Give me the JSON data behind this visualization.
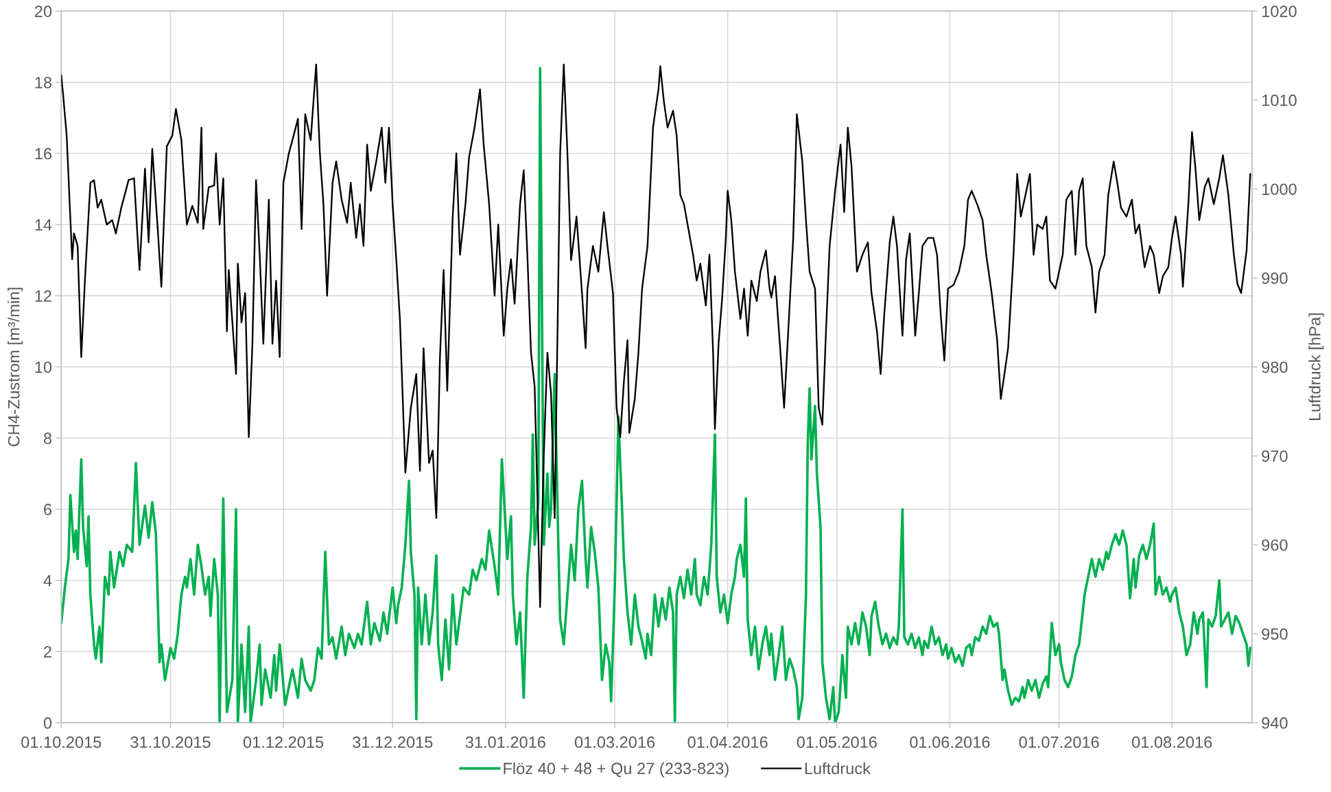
{
  "chart_data": {
    "type": "line",
    "ylabel": "CH4-Zustrom [m³/min]",
    "y2label": "Luftdruck [hPa]",
    "xlim": [
      "2015-10-01",
      "2016-08-23"
    ],
    "xticks": [
      {
        "value": "2015-10-01",
        "label": "01.10.2015"
      },
      {
        "value": "2015-10-31",
        "label": "31.10.2015"
      },
      {
        "value": "2015-12-01",
        "label": "01.12.2015"
      },
      {
        "value": "2015-12-31",
        "label": "31.12.2015"
      },
      {
        "value": "2016-01-31",
        "label": "31.01.2016"
      },
      {
        "value": "2016-03-01",
        "label": "01.03.2016"
      },
      {
        "value": "2016-04-01",
        "label": "01.04.2016"
      },
      {
        "value": "2016-05-01",
        "label": "01.05.2016"
      },
      {
        "value": "2016-06-01",
        "label": "01.06.2016"
      },
      {
        "value": "2016-07-01",
        "label": "01.07.2016"
      },
      {
        "value": "2016-08-01",
        "label": "01.08.2016"
      }
    ],
    "ylim": [
      0,
      20
    ],
    "yticks": [
      0,
      2,
      4,
      6,
      8,
      10,
      12,
      14,
      16,
      18,
      20
    ],
    "y2lim": [
      940,
      1020
    ],
    "y2ticks": [
      940,
      950,
      960,
      970,
      980,
      990,
      1000,
      1010,
      1020
    ],
    "grid": true,
    "legend": "bottom",
    "line_style": "solid",
    "series": [
      {
        "name": "Flöz 40 + 48 + Qu 27 (233-823)",
        "color": "#00b050",
        "axis": "y",
        "x": [
          "2015-10-01",
          "2015-10-02",
          "2015-10-03",
          "2015-10-03T12:00",
          "2015-10-04T12:00",
          "2015-10-05",
          "2015-10-05T12:00",
          "2015-10-06T12:00",
          "2015-10-07",
          "2015-10-08",
          "2015-10-08T12:00",
          "2015-10-09",
          "2015-10-10",
          "2015-10-10T12:00",
          "2015-10-11T12:00",
          "2015-10-12",
          "2015-10-13",
          "2015-10-14",
          "2015-10-14T12:00",
          "2015-10-15T12:00",
          "2015-10-17",
          "2015-10-18",
          "2015-10-19",
          "2015-10-20T12:00",
          "2015-10-21T12:00",
          "2015-10-22T12:00",
          "2015-10-24",
          "2015-10-25",
          "2015-10-26",
          "2015-10-27",
          "2015-10-28",
          "2015-10-28T12:00",
          "2015-10-29T12:00",
          "2015-10-31",
          "2015-11-01",
          "2015-11-02",
          "2015-11-03",
          "2015-11-04",
          "2015-11-04T12:00",
          "2015-11-05T12:00",
          "2015-11-06T12:00",
          "2015-11-07T12:00",
          "2015-11-08T12:00",
          "2015-11-09T12:00",
          "2015-11-10T12:00",
          "2015-11-11",
          "2015-11-12",
          "2015-11-13",
          "2015-11-13T12:00",
          "2015-11-14T12:00",
          "2015-11-15T12:00",
          "2015-11-17",
          "2015-11-18",
          "2015-11-18T12:00",
          "2015-11-19T12:00",
          "2015-11-20T12:00",
          "2015-11-21T12:00",
          "2015-11-22",
          "2015-11-23T12:00",
          "2015-11-24T12:00",
          "2015-11-25",
          "2015-11-26",
          "2015-11-27T12:00",
          "2015-11-28T12:00",
          "2015-11-29",
          "2015-11-30",
          "2015-12-01T12:00",
          "2015-12-02T12:00",
          "2015-12-03T12:00",
          "2015-12-05",
          "2015-12-06",
          "2015-12-07",
          "2015-12-08T12:00",
          "2015-12-09T12:00",
          "2015-12-10T12:00",
          "2015-12-11T12:00",
          "2015-12-12T12:00",
          "2015-12-13T12:00",
          "2015-12-14T12:00",
          "2015-12-15T12:00",
          "2015-12-17",
          "2015-12-18",
          "2015-12-19",
          "2015-12-20T12:00",
          "2015-12-21T12:00",
          "2015-12-22T12:00",
          "2015-12-24",
          "2015-12-25",
          "2015-12-26",
          "2015-12-27T12:00",
          "2015-12-28T12:00",
          "2015-12-29T12:00",
          "2015-12-31",
          "2016-01-01",
          "2016-01-01T12:00",
          "2016-01-02T12:00",
          "2016-01-03T12:00",
          "2016-01-04T12:00",
          "2016-01-05",
          "2016-01-06",
          "2016-01-06T12:00",
          "2016-01-07",
          "2016-01-08",
          "2016-01-09",
          "2016-01-10",
          "2016-01-11",
          "2016-01-12",
          "2016-01-12T12:00",
          "2016-01-13T12:00",
          "2016-01-14T12:00",
          "2016-01-15T12:00",
          "2016-01-16T12:00",
          "2016-01-17T12:00",
          "2016-01-18T12:00",
          "2016-01-19T12:00",
          "2016-01-21",
          "2016-01-22",
          "2016-01-23",
          "2016-01-24T12:00",
          "2016-01-25T12:00",
          "2016-01-26T12:00",
          "2016-01-28",
          "2016-01-29",
          "2016-01-30",
          "2016-01-31T12:00",
          "2016-02-01T12:00",
          "2016-02-02",
          "2016-02-03",
          "2016-02-04",
          "2016-02-05",
          "2016-02-06",
          "2016-02-07",
          "2016-02-07T12:00",
          "2016-02-08",
          "2016-02-09",
          "2016-02-09T12:00",
          "2016-02-10T12:00",
          "2016-02-11T12:00",
          "2016-02-12",
          "2016-02-12T12:00",
          "2016-02-13T12:00",
          "2016-02-14T12:00",
          "2016-02-15",
          "2016-02-16",
          "2016-02-17",
          "2016-02-18",
          "2016-02-19",
          "2016-02-20",
          "2016-02-21",
          "2016-02-22",
          "2016-02-22T12:00",
          "2016-02-23T12:00",
          "2016-02-24T12:00",
          "2016-02-25T12:00",
          "2016-02-26T12:00",
          "2016-02-27T12:00",
          "2016-02-28T12:00",
          "2016-02-29",
          "2016-03-01",
          "2016-03-02",
          "2016-03-03",
          "2016-03-03T12:00",
          "2016-03-04T12:00",
          "2016-03-05T12:00",
          "2016-03-06T12:00",
          "2016-03-07T12:00",
          "2016-03-08T12:00",
          "2016-03-09T12:00",
          "2016-03-10",
          "2016-03-11",
          "2016-03-12",
          "2016-03-13",
          "2016-03-14",
          "2016-03-15",
          "2016-03-16",
          "2016-03-17",
          "2016-03-17T12:00",
          "2016-03-18",
          "2016-03-19",
          "2016-03-20",
          "2016-03-21",
          "2016-03-22",
          "2016-03-23",
          "2016-03-23T12:00",
          "2016-03-24T12:00",
          "2016-03-25T12:00",
          "2016-03-26T12:00",
          "2016-03-27T12:00",
          "2016-03-28T12:00",
          "2016-03-29",
          "2016-03-30",
          "2016-03-31",
          "2016-04-01",
          "2016-04-02",
          "2016-04-03",
          "2016-04-03T12:00",
          "2016-04-04T12:00",
          "2016-04-05T12:00",
          "2016-04-06",
          "2016-04-06T12:00",
          "2016-04-07T12:00",
          "2016-04-08T12:00",
          "2016-04-09T12:00",
          "2016-04-10T12:00",
          "2016-04-11T12:00",
          "2016-04-12T12:00",
          "2016-04-13",
          "2016-04-14",
          "2016-04-15",
          "2016-04-16",
          "2016-04-17",
          "2016-04-18",
          "2016-04-19",
          "2016-04-20",
          "2016-04-20T12:00",
          "2016-04-21T12:00",
          "2016-04-22T12:00",
          "2016-04-23",
          "2016-04-23T12:00",
          "2016-04-24",
          "2016-04-25",
          "2016-04-25T12:00",
          "2016-04-26T12:00",
          "2016-04-27",
          "2016-04-28",
          "2016-04-29",
          "2016-04-30",
          "2016-04-30T12:00",
          "2016-05-01T12:00",
          "2016-05-02T12:00",
          "2016-05-03T12:00",
          "2016-05-04",
          "2016-05-05",
          "2016-05-06",
          "2016-05-07",
          "2016-05-08",
          "2016-05-09",
          "2016-05-10",
          "2016-05-10T12:00",
          "2016-05-11T12:00",
          "2016-05-12T12:00",
          "2016-05-13T12:00",
          "2016-05-14T12:00",
          "2016-05-15T12:00",
          "2016-05-16T12:00",
          "2016-05-17T12:00",
          "2016-05-18",
          "2016-05-19",
          "2016-05-19T12:00",
          "2016-05-20T12:00",
          "2016-05-21T12:00",
          "2016-05-22T12:00",
          "2016-05-23T12:00",
          "2016-05-24T12:00",
          "2016-05-25",
          "2016-05-26",
          "2016-05-27",
          "2016-05-28",
          "2016-05-29",
          "2016-05-30",
          "2016-05-31",
          "2016-05-31T12:00",
          "2016-06-01T12:00",
          "2016-06-02T12:00",
          "2016-06-03T12:00",
          "2016-06-04T12:00",
          "2016-06-05T12:00",
          "2016-06-06T12:00",
          "2016-06-07",
          "2016-06-08",
          "2016-06-09",
          "2016-06-10",
          "2016-06-11",
          "2016-06-12",
          "2016-06-13",
          "2016-06-14",
          "2016-06-14T12:00",
          "2016-06-15T12:00",
          "2016-06-16",
          "2016-06-17",
          "2016-06-18",
          "2016-06-19",
          "2016-06-20",
          "2016-06-21",
          "2016-06-21T12:00",
          "2016-06-22T12:00",
          "2016-06-23T12:00",
          "2016-06-24T12:00",
          "2016-06-25T12:00",
          "2016-06-26T12:00",
          "2016-06-27T12:00",
          "2016-06-28",
          "2016-06-29",
          "2016-06-30",
          "2016-07-01",
          "2016-07-01T12:00",
          "2016-07-02T12:00",
          "2016-07-03T12:00",
          "2016-07-04T12:00",
          "2016-07-05T12:00",
          "2016-07-06T12:00",
          "2016-07-07T12:00",
          "2016-07-08",
          "2016-07-09",
          "2016-07-10",
          "2016-07-11",
          "2016-07-12",
          "2016-07-13",
          "2016-07-14",
          "2016-07-14T12:00",
          "2016-07-15T12:00",
          "2016-07-16T12:00",
          "2016-07-17T12:00",
          "2016-07-18T12:00",
          "2016-07-19T12:00",
          "2016-07-20T12:00",
          "2016-07-21T12:00",
          "2016-07-22",
          "2016-07-23",
          "2016-07-24",
          "2016-07-25",
          "2016-07-26",
          "2016-07-27",
          "2016-07-27T12:00",
          "2016-07-28T12:00",
          "2016-07-29T12:00",
          "2016-07-30T12:00",
          "2016-07-31T12:00",
          "2016-08-01",
          "2016-08-02",
          "2016-08-03",
          "2016-08-04",
          "2016-08-05",
          "2016-08-06",
          "2016-08-07",
          "2016-08-08",
          "2016-08-08T12:00",
          "2016-08-09T12:00",
          "2016-08-10T12:00",
          "2016-08-11",
          "2016-08-12",
          "2016-08-13",
          "2016-08-14",
          "2016-08-14T12:00",
          "2016-08-15T12:00",
          "2016-08-16T12:00",
          "2016-08-17T12:00",
          "2016-08-18T12:00",
          "2016-08-19T12:00",
          "2016-08-20T12:00",
          "2016-08-21T12:00",
          "2016-08-22",
          "2016-08-22T12:00"
        ],
        "values": [
          2.8,
          3.8,
          4.6,
          6.4,
          4.8,
          5.4,
          4.6,
          7.4,
          5.5,
          4.4,
          5.8,
          3.6,
          2.2,
          1.8,
          2.7,
          1.7,
          4.1,
          3.6,
          4.8,
          3.8,
          4.8,
          4.4,
          5.0,
          4.8,
          7.3,
          5.0,
          6.1,
          5.2,
          6.2,
          5.3,
          1.7,
          2.2,
          1.2,
          2.1,
          1.8,
          2.5,
          3.6,
          4.1,
          3.8,
          4.6,
          3.6,
          5.0,
          4.4,
          3.6,
          4.1,
          3.0,
          4.6,
          3.6,
          0.0,
          6.3,
          0.3,
          1.2,
          6.0,
          0.0,
          2.2,
          0.3,
          2.7,
          0.0,
          1.2,
          2.2,
          0.5,
          1.5,
          0.7,
          1.9,
          0.9,
          2.2,
          0.5,
          1.0,
          1.5,
          0.7,
          1.8,
          1.2,
          0.9,
          1.2,
          2.1,
          1.8,
          4.8,
          2.2,
          2.4,
          1.8,
          2.7,
          1.9,
          2.5,
          2.1,
          2.5,
          2.2,
          3.4,
          2.2,
          2.8,
          2.3,
          3.1,
          2.5,
          3.8,
          2.8,
          3.3,
          3.8,
          5.0,
          6.8,
          4.8,
          3.6,
          0.1,
          3.8,
          2.2,
          3.6,
          2.2,
          3.1,
          4.7,
          2.2,
          1.2,
          2.9,
          1.5,
          3.6,
          2.2,
          3.0,
          3.8,
          3.6,
          4.3,
          4.0,
          4.6,
          4.3,
          5.4,
          4.4,
          3.6,
          7.4,
          4.6,
          5.8,
          3.6,
          2.2,
          3.1,
          0.7,
          4.1,
          5.5,
          8.1,
          5.0,
          6.2,
          18.4,
          5.0,
          7.0,
          5.5,
          6.0,
          9.8,
          5.0,
          2.9,
          2.2,
          3.6,
          5.0,
          4.0,
          6.0,
          6.8,
          4.6,
          3.8,
          5.5,
          4.8,
          3.8,
          1.2,
          2.2,
          1.7,
          0.6,
          3.8,
          8.6,
          6.0,
          4.6,
          3.1,
          2.2,
          3.6,
          2.7,
          2.3,
          1.8,
          2.5,
          1.9,
          3.6,
          2.7,
          3.5,
          2.9,
          3.8,
          3.1,
          0.0,
          3.6,
          4.1,
          3.5,
          4.3,
          3.6,
          4.6,
          3.6,
          3.3,
          4.1,
          3.6,
          5.0,
          8.1,
          4.1,
          3.1,
          3.6,
          2.8,
          3.6,
          4.1,
          4.6,
          5.0,
          4.1,
          6.3,
          2.9,
          1.9,
          2.7,
          1.5,
          2.2,
          2.7,
          1.9,
          2.5,
          1.2,
          1.9,
          2.7,
          1.2,
          1.8,
          1.5,
          1.0,
          0.1,
          0.7,
          3.6,
          7.9,
          9.4,
          7.4,
          8.9,
          7.0,
          5.5,
          1.7,
          0.7,
          0.1,
          1.0,
          0.0,
          0.3,
          1.9,
          0.7,
          2.7,
          2.2,
          2.8,
          2.2,
          3.1,
          2.7,
          1.9,
          3.0,
          3.4,
          2.7,
          2.2,
          2.5,
          2.1,
          2.4,
          2.2,
          2.7,
          6.0,
          2.4,
          2.2,
          2.5,
          2.1,
          2.4,
          1.9,
          2.3,
          2.1,
          2.7,
          2.2,
          2.4,
          1.9,
          2.2,
          1.8,
          2.1,
          1.7,
          1.9,
          1.6,
          2.1,
          2.2,
          1.9,
          2.4,
          2.3,
          2.7,
          2.5,
          3.0,
          2.7,
          2.8,
          2.5,
          1.2,
          1.5,
          0.9,
          0.5,
          0.7,
          0.6,
          1.0,
          0.7,
          1.2,
          0.9,
          1.2,
          0.7,
          1.1,
          1.3,
          1.0,
          2.8,
          1.9,
          2.2,
          1.7,
          1.2,
          1.0,
          1.3,
          1.9,
          2.2,
          3.1,
          3.6,
          4.1,
          4.6,
          4.1,
          4.6,
          4.3,
          4.8,
          4.6,
          5.0,
          5.3,
          5.0,
          5.4,
          5.0,
          3.5,
          4.6,
          3.8,
          4.7,
          5.0,
          4.6,
          5.0,
          5.6,
          3.6,
          4.1,
          3.6,
          3.8,
          3.4,
          3.6,
          3.8,
          3.1,
          2.7,
          1.9,
          2.2,
          3.1,
          2.5,
          2.9,
          3.1,
          1.0,
          2.9,
          2.7,
          3.0,
          4.0,
          2.7,
          2.9,
          3.1,
          2.5,
          3.0,
          2.8,
          2.5,
          2.2,
          1.6,
          2.1
        ]
      },
      {
        "name": "Luftdruck",
        "color": "#000000",
        "axis": "y2",
        "x": [
          "2015-10-01",
          "2015-10-01T12:00",
          "2015-10-02T12:00",
          "2015-10-04",
          "2015-10-04T12:00",
          "2015-10-05T12:00",
          "2015-10-06T12:00",
          "2015-10-07T12:00",
          "2015-10-09",
          "2015-10-10",
          "2015-10-11",
          "2015-10-12",
          "2015-10-13T12:00",
          "2015-10-15",
          "2015-10-16",
          "2015-10-17T12:00",
          "2015-10-19T12:00",
          "2015-10-21",
          "2015-10-22T12:00",
          "2015-10-24",
          "2015-10-25",
          "2015-10-26",
          "2015-10-27T12:00",
          "2015-10-28T12:00",
          "2015-10-30",
          "2015-10-31T12:00",
          "2015-11-01T12:00",
          "2015-11-03",
          "2015-11-04T12:00",
          "2015-11-06",
          "2015-11-07T12:00",
          "2015-11-08T12:00",
          "2015-11-09",
          "2015-11-10T12:00",
          "2015-11-12",
          "2015-11-12T12:00",
          "2015-11-13T12:00",
          "2015-11-14T12:00",
          "2015-11-15T12:00",
          "2015-11-16",
          "2015-11-17",
          "2015-11-18",
          "2015-11-18T12:00",
          "2015-11-19T12:00",
          "2015-11-20T12:00",
          "2015-11-21T12:00",
          "2015-11-22T12:00",
          "2015-11-23T12:00",
          "2015-11-24T12:00",
          "2015-11-25T12:00",
          "2015-11-27",
          "2015-11-28",
          "2015-11-29",
          "2015-11-30",
          "2015-12-01",
          "2015-12-02T12:00",
          "2015-12-03T12:00",
          "2015-12-05",
          "2015-12-06",
          "2015-12-07",
          "2015-12-08T12:00",
          "2015-12-10",
          "2015-12-11",
          "2015-12-12",
          "2015-12-13",
          "2015-12-14T12:00",
          "2015-12-15T12:00",
          "2015-12-17",
          "2015-12-18T12:00",
          "2015-12-19T12:00",
          "2015-12-21",
          "2015-12-22",
          "2015-12-23",
          "2015-12-24",
          "2015-12-25",
          "2015-12-26T12:00",
          "2015-12-28",
          "2015-12-29",
          "2015-12-30",
          "2015-12-31",
          "2016-01-01",
          "2016-01-02",
          "2016-01-03T12:00",
          "2016-01-05",
          "2016-01-06T12:00",
          "2016-01-07T12:00",
          "2016-01-08T12:00",
          "2016-01-10",
          "2016-01-11",
          "2016-01-12",
          "2016-01-13",
          "2016-01-14",
          "2016-01-15",
          "2016-01-16T12:00",
          "2016-01-17T12:00",
          "2016-01-18T12:00",
          "2016-01-20",
          "2016-01-21",
          "2016-01-22T12:00",
          "2016-01-24",
          "2016-01-25",
          "2016-01-26T12:00",
          "2016-01-28",
          "2016-01-29",
          "2016-01-30T12:00",
          "2016-01-31T12:00",
          "2016-02-01T12:00",
          "2016-02-02T12:00",
          "2016-02-04",
          "2016-02-05",
          "2016-02-06",
          "2016-02-07",
          "2016-02-08",
          "2016-02-08T12:00",
          "2016-02-09T12:00",
          "2016-02-10T12:00",
          "2016-02-11T12:00",
          "2016-02-12T12:00",
          "2016-02-13T12:00",
          "2016-02-14T12:00",
          "2016-02-15",
          "2016-02-16",
          "2016-02-17",
          "2016-02-18",
          "2016-02-18T12:00",
          "2016-02-19T12:00",
          "2016-02-21",
          "2016-02-22",
          "2016-02-22T12:00",
          "2016-02-24",
          "2016-02-25T12:00",
          "2016-02-27",
          "2016-02-28",
          "2016-02-29T12:00",
          "2016-03-01T12:00",
          "2016-03-02T12:00",
          "2016-03-03T12:00",
          "2016-03-04T12:00",
          "2016-03-05",
          "2016-03-06T12:00",
          "2016-03-07T12:00",
          "2016-03-08T12:00",
          "2016-03-10",
          "2016-03-11T12:00",
          "2016-03-13",
          "2016-03-13T12:00",
          "2016-03-14T12:00",
          "2016-03-15T12:00",
          "2016-03-17",
          "2016-03-18",
          "2016-03-19",
          "2016-03-20",
          "2016-03-21",
          "2016-03-22T12:00",
          "2016-03-23T12:00",
          "2016-03-24T12:00",
          "2016-03-26",
          "2016-03-27",
          "2016-03-28",
          "2016-03-28T12:00",
          "2016-03-29T12:00",
          "2016-03-30T12:00",
          "2016-03-31T12:00",
          "2016-04-01",
          "2016-04-02",
          "2016-04-03",
          "2016-04-04T12:00",
          "2016-04-05T12:00",
          "2016-04-06T12:00",
          "2016-04-07T12:00",
          "2016-04-09",
          "2016-04-10",
          "2016-04-11T12:00",
          "2016-04-12T12:00",
          "2016-04-13",
          "2016-04-14",
          "2016-04-15T12:00",
          "2016-04-16T12:00",
          "2016-04-17T12:00",
          "2016-04-19",
          "2016-04-20",
          "2016-04-21T12:00",
          "2016-04-22T12:00",
          "2016-04-23T12:00",
          "2016-04-25",
          "2016-04-26",
          "2016-04-27",
          "2016-04-28",
          "2016-04-29",
          "2016-04-30T12:00",
          "2016-05-02",
          "2016-05-03",
          "2016-05-04",
          "2016-05-05",
          "2016-05-06T12:00",
          "2016-05-08",
          "2016-05-09T12:00",
          "2016-05-10T12:00",
          "2016-05-12",
          "2016-05-13",
          "2016-05-14",
          "2016-05-15T12:00",
          "2016-05-16T12:00",
          "2016-05-17T12:00",
          "2016-05-19",
          "2016-05-20",
          "2016-05-21",
          "2016-05-22T12:00",
          "2016-05-23T12:00",
          "2016-05-24T12:00",
          "2016-05-26",
          "2016-05-27T12:00",
          "2016-05-28T12:00",
          "2016-05-29T12:00",
          "2016-05-30T12:00",
          "2016-05-31T12:00",
          "2016-06-02",
          "2016-06-03T12:00",
          "2016-06-05",
          "2016-06-06",
          "2016-06-07",
          "2016-06-08T12:00",
          "2016-06-10",
          "2016-06-11",
          "2016-06-12T12:00",
          "2016-06-14",
          "2016-06-15",
          "2016-06-16",
          "2016-06-17",
          "2016-06-18T12:00",
          "2016-06-19T12:00",
          "2016-06-20T12:00",
          "2016-06-21T12:00",
          "2016-06-23",
          "2016-06-24",
          "2016-06-25",
          "2016-06-26T12:00",
          "2016-06-27T12:00",
          "2016-06-28T12:00",
          "2016-06-30",
          "2016-07-01",
          "2016-07-02",
          "2016-07-03",
          "2016-07-04T12:00",
          "2016-07-05T12:00",
          "2016-07-06T12:00",
          "2016-07-07T12:00",
          "2016-07-08T12:00",
          "2016-07-10",
          "2016-07-11",
          "2016-07-12",
          "2016-07-13T12:00",
          "2016-07-14T12:00",
          "2016-07-16",
          "2016-07-17",
          "2016-07-18",
          "2016-07-19T12:00",
          "2016-07-21",
          "2016-07-22",
          "2016-07-23",
          "2016-07-24T12:00",
          "2016-07-26",
          "2016-07-27",
          "2016-07-28T12:00",
          "2016-07-29T12:00",
          "2016-07-31",
          "2016-08-01",
          "2016-08-02",
          "2016-08-03T12:00",
          "2016-08-04",
          "2016-08-05T12:00",
          "2016-08-06T12:00",
          "2016-08-07T12:00",
          "2016-08-08T12:00",
          "2016-08-10",
          "2016-08-11",
          "2016-08-12T12:00",
          "2016-08-14",
          "2016-08-15",
          "2016-08-16T12:00",
          "2016-08-18",
          "2016-08-19",
          "2016-08-20",
          "2016-08-21T12:00",
          "2016-08-22T12:00"
        ],
        "values": [
          1012.8,
          1010.7,
          1006.0,
          992.1,
          995.0,
          993.6,
          981.1,
          989.7,
          1000.7,
          1001.0,
          997.9,
          998.8,
          996.0,
          996.5,
          995.0,
          997.9,
          1001.0,
          1001.2,
          990.9,
          1002.3,
          994.0,
          1004.5,
          995.5,
          989.0,
          1004.8,
          1006.0,
          1009.0,
          1005.5,
          996.0,
          998.1,
          996.2,
          1006.9,
          995.5,
          1000.2,
          1000.4,
          1004.0,
          996.0,
          1001.2,
          984.0,
          990.9,
          985.0,
          979.2,
          991.6,
          985.0,
          988.3,
          972.1,
          982.6,
          1001.0,
          992.6,
          982.6,
          998.8,
          982.6,
          989.7,
          981.1,
          1000.7,
          1004.0,
          1005.5,
          1007.9,
          995.5,
          1008.4,
          1005.5,
          1014.0,
          1004.2,
          998.3,
          988.0,
          1000.7,
          1003.1,
          998.8,
          996.2,
          1000.7,
          994.5,
          998.3,
          993.6,
          1005.0,
          999.8,
          1003.1,
          1006.9,
          1000.7,
          1006.9,
          998.3,
          992.1,
          985.4,
          968.1,
          975.4,
          979.2,
          968.3,
          982.1,
          969.2,
          970.6,
          963.0,
          981.1,
          990.9,
          977.3,
          996.9,
          1004.0,
          992.6,
          998.3,
          1003.6,
          1006.9,
          1011.2,
          1005.0,
          998.3,
          988.0,
          996.0,
          983.5,
          988.8,
          992.1,
          987.1,
          998.3,
          1002.1,
          992.6,
          981.6,
          977.8,
          969.7,
          953.0,
          970.0,
          981.6,
          977.0,
          963.0,
          990.0,
          1004.0,
          1014.0,
          1004.0,
          992.0,
          993.6,
          996.9,
          988.3,
          982.1,
          988.8,
          993.6,
          990.7,
          997.4,
          993.6,
          988.3,
          975.4,
          972.1,
          978.3,
          983.0,
          972.6,
          976.4,
          981.6,
          988.8,
          993.6,
          1006.9,
          1011.2,
          1013.8,
          1009.8,
          1006.9,
          1008.8,
          1006.0,
          999.3,
          998.3,
          996.0,
          992.6,
          989.7,
          991.6,
          986.9,
          992.6,
          981.6,
          973.0,
          982.6,
          987.8,
          994.5,
          999.8,
          996.5,
          990.7,
          985.4,
          988.8,
          983.5,
          989.7,
          987.4,
          990.7,
          993.1,
          988.8,
          987.8,
          990.2,
          981.6,
          975.4,
          983.0,
          994.5,
          1008.4,
          1003.1,
          996.5,
          990.7,
          988.8,
          975.4,
          973.5,
          984.0,
          993.6,
          999.8,
          1005.0,
          997.4,
          1006.9,
          1002.6,
          990.7,
          992.6,
          994.0,
          988.3,
          984.0,
          979.2,
          985.9,
          994.0,
          996.9,
          993.6,
          983.5,
          992.1,
          995.0,
          983.5,
          988.3,
          993.6,
          994.5,
          994.5,
          992.6,
          985.9,
          980.7,
          988.8,
          989.2,
          990.7,
          993.6,
          998.8,
          999.8,
          998.3,
          996.5,
          992.6,
          988.3,
          983.0,
          976.4,
          979.2,
          982.1,
          992.6,
          1001.7,
          996.9,
          998.8,
          1001.7,
          992.6,
          996.0,
          995.5,
          996.9,
          989.7,
          988.8,
          990.7,
          992.6,
          998.8,
          999.8,
          992.6,
          999.8,
          1001.2,
          993.6,
          991.2,
          986.1,
          990.7,
          992.6,
          999.3,
          1003.1,
          1000.7,
          997.9,
          996.9,
          998.8,
          995.0,
          996.0,
          991.2,
          993.6,
          992.6,
          988.3,
          990.2,
          991.2,
          994.5,
          996.9,
          992.6,
          989.0,
          998.3,
          1006.4,
          1002.1,
          996.5,
          1000.2,
          1001.2,
          998.3,
          1001.2,
          1003.8,
          999.3,
          992.6,
          989.3,
          988.3,
          993.1,
          1001.7
        ]
      }
    ]
  }
}
